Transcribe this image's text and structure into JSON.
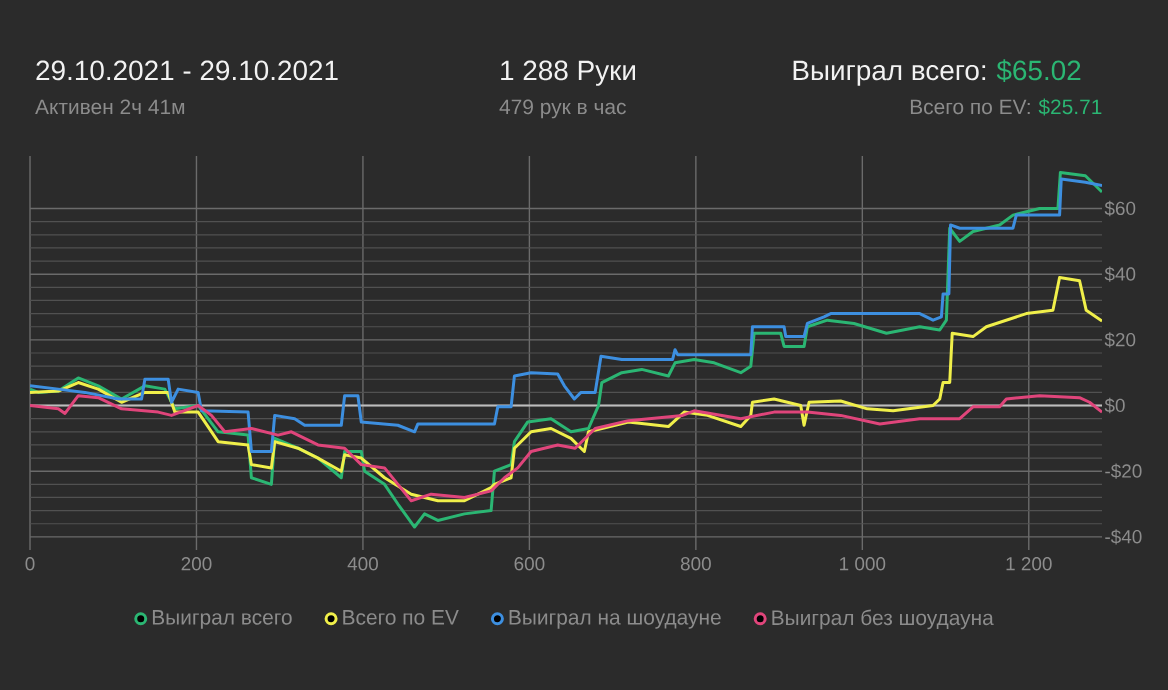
{
  "chart_data": {
    "type": "line",
    "title": "29.10.2021 - 29.10.2021",
    "subtitle": "Активен 2ч 41м",
    "annotations": [
      "1 288 Руки",
      "479 рук в час",
      "Выиграл всего:",
      "$65.02",
      "Всего по EV:",
      "$25.71"
    ],
    "xlim": [
      0,
      1288
    ],
    "ylim": [
      -44,
      76
    ],
    "xticks": [
      0,
      200,
      400,
      600,
      800,
      {
        "value": 1000,
        "label": "1 000"
      },
      {
        "value": 1200,
        "label": "1 200"
      }
    ],
    "yticks": [
      {
        "value": -40,
        "label": "-$40"
      },
      {
        "value": -20,
        "label": "-$20"
      },
      {
        "value": 0,
        "label": "$0"
      },
      {
        "value": 20,
        "label": "$20"
      },
      {
        "value": 40,
        "label": "$40"
      },
      {
        "value": 60,
        "label": "$60"
      }
    ],
    "grid": true,
    "legend": "bottom",
    "marker": "none",
    "line_style": "solid",
    "ref_lines": [
      {
        "axis": "y",
        "value": 0,
        "color": "#bdbdbd"
      }
    ],
    "series": [
      {
        "name": "Выиграл всего",
        "color": "#2bb673",
        "x": [
          0,
          10,
          34,
          58,
          82,
          110,
          138,
          162,
          174,
          202,
          226,
          262,
          266,
          290,
          294,
          322,
          346,
          374,
          378,
          398,
          402,
          426,
          442,
          462,
          474,
          490,
          522,
          554,
          558,
          578,
          582,
          598,
          626,
          650,
          671,
          683,
          687,
          711,
          735,
          767,
          775,
          798,
          822,
          854,
          866,
          870,
          902,
          906,
          930,
          934,
          958,
          990,
          1029,
          1069,
          1093,
          1101,
          1105,
          1117,
          1133,
          1165,
          1181,
          1213,
          1235,
          1238,
          1268,
          1288
        ],
        "values": [
          5,
          4,
          4.4,
          8.4,
          6,
          2,
          6,
          5,
          -1,
          0,
          -8,
          -9,
          -22,
          -24,
          -10,
          -13,
          -16,
          -22,
          -14,
          -14,
          -20,
          -24,
          -30,
          -37,
          -33,
          -35,
          -33,
          -32,
          -20,
          -18,
          -11,
          -5,
          -4,
          -8,
          -7,
          0,
          7,
          10,
          11,
          9,
          13,
          14,
          13,
          10,
          12,
          22,
          22,
          18,
          18,
          24,
          26,
          25,
          22,
          24,
          23,
          26,
          54,
          50,
          53,
          55,
          58,
          60,
          60,
          71,
          70,
          65.02
        ]
      },
      {
        "name": "Всего по EV",
        "color": "#f0ef4a",
        "x": [
          0,
          34,
          58,
          82,
          110,
          138,
          166,
          174,
          202,
          210,
          226,
          262,
          266,
          290,
          294,
          322,
          346,
          374,
          378,
          398,
          426,
          458,
          490,
          522,
          554,
          558,
          578,
          582,
          602,
          626,
          650,
          666,
          671,
          687,
          719,
          767,
          786,
          814,
          854,
          866,
          868,
          894,
          926,
          930,
          936,
          974,
          1006,
          1037,
          1085,
          1093,
          1097,
          1105,
          1108,
          1133,
          1149,
          1197,
          1229,
          1237,
          1261,
          1269,
          1288
        ],
        "values": [
          4,
          4.4,
          7,
          5,
          1,
          4,
          4,
          -2,
          -2,
          -5,
          -11,
          -12,
          -18,
          -19,
          -11,
          -13,
          -16,
          -20,
          -15,
          -16,
          -22,
          -27,
          -29,
          -29,
          -25,
          -24,
          -22,
          -13,
          -8,
          -7,
          -10,
          -14,
          -8,
          -7,
          -5,
          -6.4,
          -2,
          -3,
          -6.4,
          -3,
          1,
          2,
          0,
          -6,
          1,
          1.4,
          -1,
          -1.6,
          0,
          2,
          7,
          7,
          22,
          21,
          24,
          28,
          29,
          39,
          38,
          29,
          25.71
        ]
      },
      {
        "name": "Выиграл на шоудауне",
        "color": "#3d8fe0",
        "x": [
          0,
          34,
          66,
          106,
          134,
          138,
          166,
          170,
          178,
          202,
          206,
          262,
          266,
          290,
          294,
          318,
          330,
          374,
          378,
          394,
          398,
          442,
          462,
          466,
          558,
          562,
          578,
          582,
          602,
          634,
          642,
          654,
          662,
          679,
          686,
          711,
          772,
          775,
          778,
          866,
          868,
          906,
          908,
          930,
          934,
          954,
          962,
          1069,
          1085,
          1095,
          1097,
          1104,
          1106,
          1117,
          1181,
          1185,
          1237,
          1239,
          1268,
          1288
        ],
        "values": [
          6,
          5,
          4,
          2,
          2,
          8,
          8,
          1,
          5,
          4,
          -1.6,
          -2,
          -14,
          -14,
          -3,
          -4,
          -6,
          -6,
          3,
          3,
          -5,
          -6,
          -8,
          -5.6,
          -5.6,
          -0.4,
          -0.4,
          9,
          10,
          9.6,
          6,
          2,
          4,
          4,
          15,
          14,
          14,
          17,
          15.5,
          15.5,
          24,
          24,
          21,
          21,
          25,
          27,
          28,
          28,
          26,
          27,
          34,
          34,
          55,
          54,
          54,
          58,
          58,
          69,
          68,
          67
        ]
      },
      {
        "name": "Выиграл без шоудауна",
        "color": "#e0457b",
        "x": [
          0,
          34,
          42,
          58,
          82,
          110,
          154,
          170,
          202,
          218,
          234,
          266,
          298,
          314,
          346,
          378,
          398,
          426,
          442,
          458,
          482,
          522,
          554,
          570,
          586,
          602,
          634,
          655,
          679,
          719,
          784,
          798,
          854,
          894,
          934,
          974,
          1021,
          1069,
          1117,
          1133,
          1165,
          1173,
          1213,
          1261,
          1273,
          1288
        ],
        "values": [
          0,
          -1,
          -2.4,
          3,
          2.4,
          -1,
          -2,
          -3,
          0,
          -3,
          -8,
          -7,
          -9,
          -8,
          -12,
          -13,
          -18,
          -19,
          -24,
          -29,
          -27,
          -28,
          -26,
          -22,
          -19,
          -14,
          -12,
          -13,
          -7,
          -4.6,
          -3,
          -1.6,
          -4,
          -2,
          -2,
          -3,
          -5.6,
          -4,
          -4,
          -0.4,
          -0.4,
          2,
          3,
          2.4,
          1,
          -2
        ]
      }
    ]
  }
}
